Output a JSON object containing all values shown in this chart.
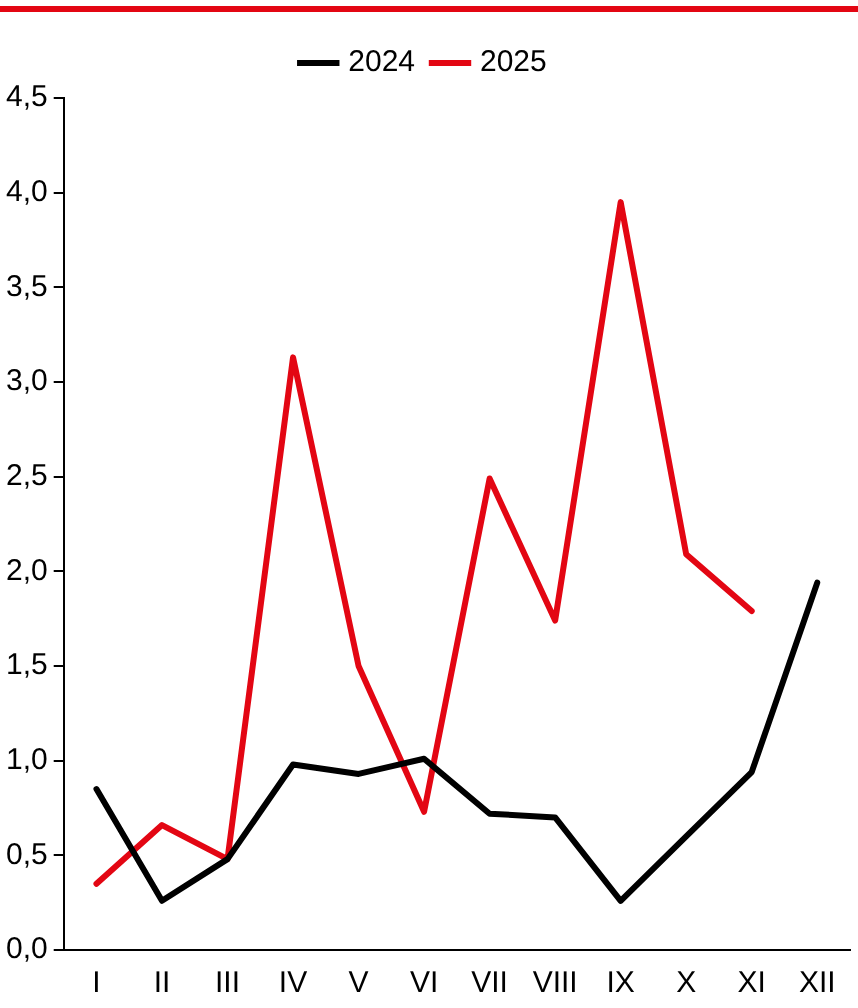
{
  "chart_data": {
    "type": "line",
    "categories": [
      "I",
      "II",
      "III",
      "IV",
      "V",
      "VI",
      "VII",
      "VIII",
      "IX",
      "X",
      "XI",
      "XII"
    ],
    "series": [
      {
        "name": "2024",
        "color": "#000000",
        "values": [
          0.85,
          0.26,
          0.48,
          0.98,
          0.93,
          1.01,
          0.72,
          0.7,
          0.26,
          0.6,
          0.94,
          1.94
        ]
      },
      {
        "name": "2025",
        "color": "#e30613",
        "values": [
          0.35,
          0.66,
          0.48,
          3.13,
          1.5,
          0.73,
          2.49,
          1.74,
          3.95,
          2.09,
          1.79,
          null
        ]
      }
    ],
    "ylim": [
      0,
      4.5
    ],
    "yticks": [
      {
        "value": 0,
        "label": "0,0"
      },
      {
        "value": 0.5,
        "label": "0,5"
      },
      {
        "value": 1,
        "label": "1,0"
      },
      {
        "value": 1.5,
        "label": "1,5"
      },
      {
        "value": 2,
        "label": "2,0"
      },
      {
        "value": 2.5,
        "label": "2,5"
      },
      {
        "value": 3,
        "label": "3,0"
      },
      {
        "value": 3.5,
        "label": "3,5"
      },
      {
        "value": 4,
        "label": "4,0"
      },
      {
        "value": 4.5,
        "label": "4,5"
      }
    ],
    "grid": false,
    "legend": "top",
    "marker": "none",
    "line_style": "solid"
  }
}
